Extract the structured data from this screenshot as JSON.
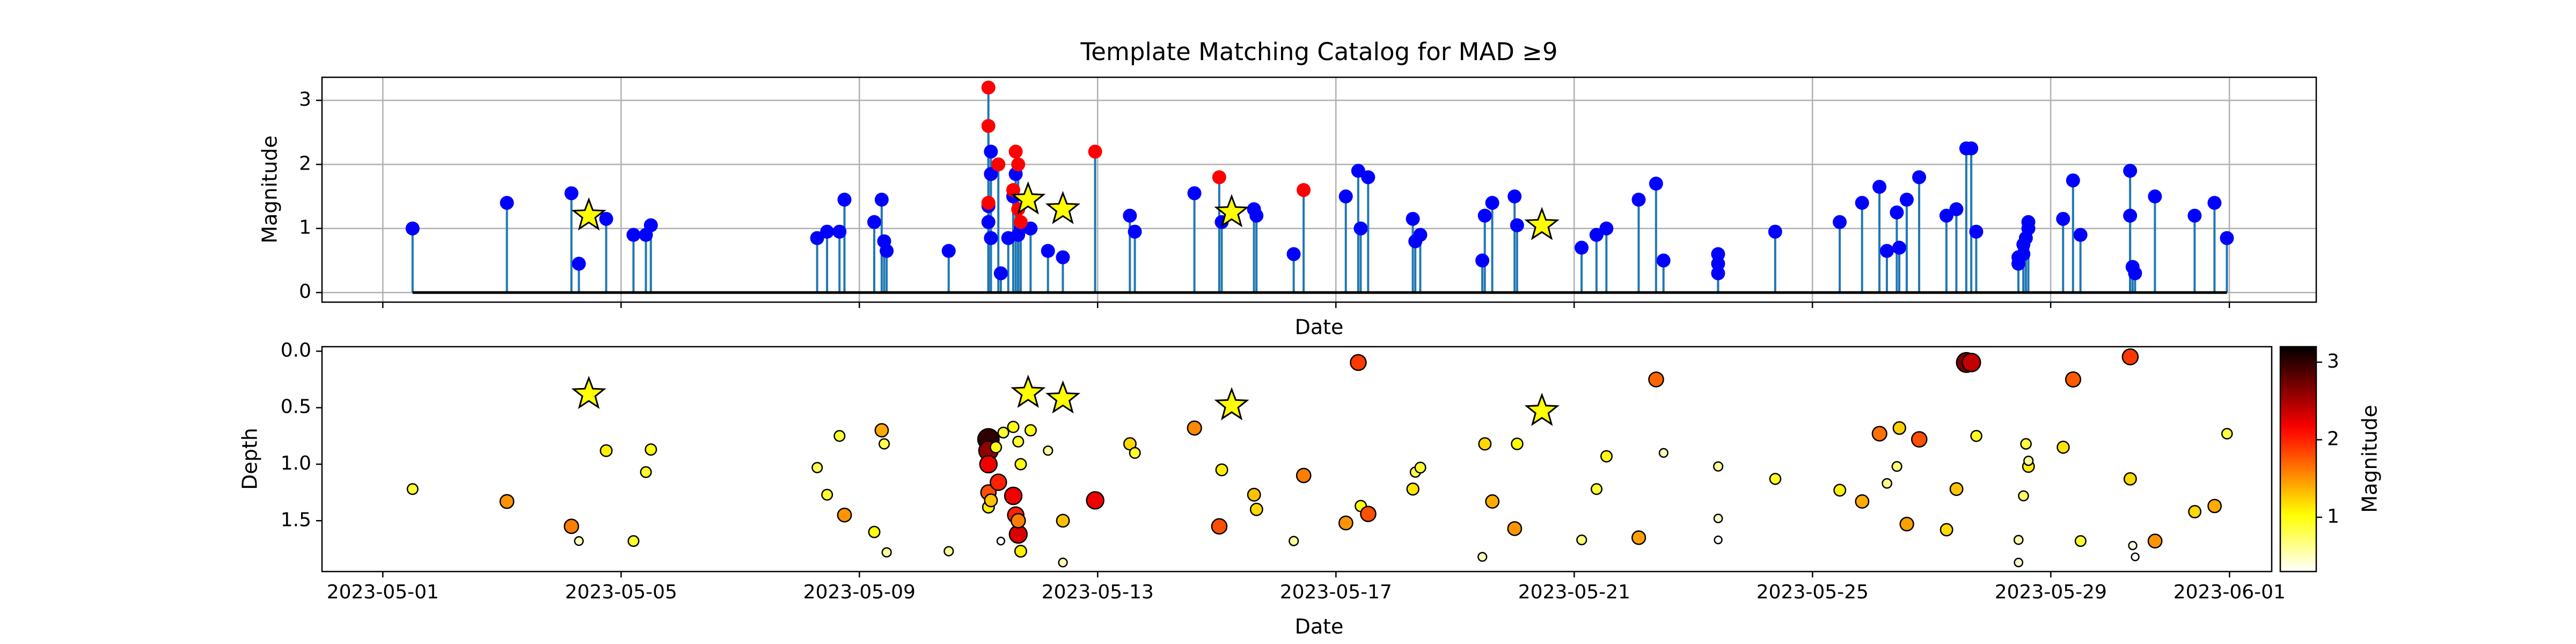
{
  "chart_data": [
    {
      "type": "stem",
      "title": "Template Matching Catalog for MAD ≥9",
      "xlabel": "Date",
      "ylabel": "Magnitude",
      "xlim": [
        "2023-04-29 23:30",
        "2023-06-02 11:00"
      ],
      "xticks": [
        "2023-05-01",
        "2023-05-05",
        "2023-05-09",
        "2023-05-13",
        "2023-05-17",
        "2023-05-21",
        "2023-05-25",
        "2023-05-29",
        "2023-06-01"
      ],
      "ylim": [
        -0.15,
        3.36
      ],
      "yticks": [
        0,
        1,
        2,
        3
      ],
      "grid": true,
      "stem_color": "#1f77b4",
      "baseline_color": "#000000",
      "series": [
        {
          "color": "#0000ff",
          "x": [
            "2023-05-01 12:00",
            "2023-05-03 02:00",
            "2023-05-04 04:00",
            "2023-05-04 07:00",
            "2023-05-04 18:00",
            "2023-05-05 05:00",
            "2023-05-05 10:00",
            "2023-05-05 12:00",
            "2023-05-08 07:00",
            "2023-05-08 11:00",
            "2023-05-08 16:00",
            "2023-05-08 18:00",
            "2023-05-09 06:00",
            "2023-05-09 09:00",
            "2023-05-09 10:00",
            "2023-05-09 11:00",
            "2023-05-10 12:00",
            "2023-05-11 04:00",
            "2023-05-11 04:00",
            "2023-05-11 05:00",
            "2023-05-11 05:00",
            "2023-05-11 05:00",
            "2023-05-11 09:00",
            "2023-05-11 12:00",
            "2023-05-11 14:00",
            "2023-05-11 15:00",
            "2023-05-11 16:00",
            "2023-05-11 17:00",
            "2023-05-11 21:00",
            "2023-05-12 04:00",
            "2023-05-12 10:00",
            "2023-05-13 13:00",
            "2023-05-13 15:00",
            "2023-05-14 15:00",
            "2023-05-15 02:00",
            "2023-05-15 15:00",
            "2023-05-15 16:00",
            "2023-05-16 07:00",
            "2023-05-17 04:00",
            "2023-05-17 09:00",
            "2023-05-17 10:00",
            "2023-05-17 13:00",
            "2023-05-18 07:00",
            "2023-05-18 08:00",
            "2023-05-18 10:00",
            "2023-05-19 11:00",
            "2023-05-19 12:00",
            "2023-05-19 15:00",
            "2023-05-20 00:00",
            "2023-05-20 01:00",
            "2023-05-21 03:00",
            "2023-05-21 09:00",
            "2023-05-21 13:00",
            "2023-05-22 02:00",
            "2023-05-22 09:00",
            "2023-05-22 12:00",
            "2023-05-23 10:00",
            "2023-05-23 10:00",
            "2023-05-23 10:00",
            "2023-05-24 09:00",
            "2023-05-25 11:00",
            "2023-05-25 20:00",
            "2023-05-26 03:00",
            "2023-05-26 06:00",
            "2023-05-26 10:00",
            "2023-05-26 11:00",
            "2023-05-26 14:00",
            "2023-05-26 19:00",
            "2023-05-27 06:00",
            "2023-05-27 10:00",
            "2023-05-27 14:00",
            "2023-05-27 16:00",
            "2023-05-27 18:00",
            "2023-05-28 11:00",
            "2023-05-28 11:00",
            "2023-05-28 13:00",
            "2023-05-28 13:00",
            "2023-05-28 14:00",
            "2023-05-28 15:00",
            "2023-05-28 15:00",
            "2023-05-29 05:00",
            "2023-05-29 09:00",
            "2023-05-29 12:00",
            "2023-05-30 08:00",
            "2023-05-30 08:00",
            "2023-05-30 09:00",
            "2023-05-30 10:00",
            "2023-05-30 18:00",
            "2023-05-31 10:00",
            "2023-05-31 18:00",
            "2023-05-31 23:00"
          ],
          "values": [
            1.0,
            1.4,
            1.55,
            0.45,
            1.15,
            0.9,
            0.9,
            1.05,
            0.85,
            0.95,
            0.95,
            1.45,
            1.1,
            1.45,
            0.8,
            0.65,
            0.65,
            1.1,
            1.35,
            1.85,
            2.2,
            0.85,
            0.3,
            0.85,
            1.5,
            1.85,
            0.9,
            1.0,
            1.0,
            0.65,
            0.55,
            1.2,
            0.95,
            1.55,
            1.1,
            1.3,
            1.2,
            0.6,
            1.5,
            1.9,
            1.0,
            1.8,
            1.15,
            0.8,
            0.9,
            0.5,
            1.2,
            1.4,
            1.5,
            1.05,
            0.7,
            0.9,
            1.0,
            1.45,
            1.7,
            0.5,
            0.6,
            0.45,
            0.3,
            0.95,
            1.1,
            1.4,
            1.65,
            0.65,
            1.25,
            0.7,
            1.45,
            1.8,
            1.2,
            1.3,
            2.25,
            2.25,
            0.95,
            0.55,
            0.45,
            0.75,
            0.6,
            0.85,
            1.1,
            1.0,
            1.15,
            1.75,
            0.9,
            1.9,
            1.2,
            0.4,
            0.3,
            1.5,
            1.2,
            1.4,
            0.85
          ]
        },
        {
          "color": "#ff0000",
          "x": [
            "2023-05-11 04:00",
            "2023-05-11 04:00",
            "2023-05-11 04:00",
            "2023-05-11 08:00",
            "2023-05-11 14:00",
            "2023-05-11 15:00",
            "2023-05-11 16:00",
            "2023-05-11 16:00",
            "2023-05-11 17:00",
            "2023-05-12 23:00",
            "2023-05-15 01:00",
            "2023-05-16 11:00"
          ],
          "values": [
            1.4,
            3.2,
            2.6,
            2.0,
            1.6,
            2.2,
            2.0,
            1.3,
            1.1,
            2.2,
            1.8,
            1.6
          ]
        }
      ],
      "templates": {
        "marker": "star",
        "color": "#ffff00",
        "x": [
          "2023-05-04 11:00",
          "2023-05-11 20:00",
          "2023-05-12 10:00",
          "2023-05-15 06:00",
          "2023-05-20 11:00"
        ],
        "values": [
          1.2,
          1.45,
          1.3,
          1.25,
          1.05
        ]
      }
    },
    {
      "type": "scatter",
      "xlabel": "Date",
      "ylabel": "Depth",
      "xlim": [
        "2023-04-29 23:30",
        "2023-06-01 17:00"
      ],
      "xticks": [
        "2023-05-01",
        "2023-05-05",
        "2023-05-09",
        "2023-05-13",
        "2023-05-17",
        "2023-05-21",
        "2023-05-25",
        "2023-05-29",
        "2023-06-01"
      ],
      "ylim": [
        1.95,
        -0.04
      ],
      "yticks": [
        {
          "value": 0,
          "label": "0.0"
        },
        {
          "value": 0.5,
          "label": "0.5"
        },
        {
          "value": 1,
          "label": "1.0"
        },
        {
          "value": 1.5,
          "label": "1.5"
        }
      ],
      "x": [
        "2023-05-01 12:00",
        "2023-05-03 02:00",
        "2023-05-04 04:00",
        "2023-05-04 07:00",
        "2023-05-04 18:00",
        "2023-05-05 05:00",
        "2023-05-05 10:00",
        "2023-05-05 12:00",
        "2023-05-08 07:00",
        "2023-05-08 11:00",
        "2023-05-08 16:00",
        "2023-05-08 18:00",
        "2023-05-09 06:00",
        "2023-05-09 09:00",
        "2023-05-09 10:00",
        "2023-05-09 11:00",
        "2023-05-10 12:00",
        "2023-05-11 04:00",
        "2023-05-11 04:00",
        "2023-05-11 04:00",
        "2023-05-11 04:00",
        "2023-05-11 04:00",
        "2023-05-11 05:00",
        "2023-05-11 07:00",
        "2023-05-11 08:00",
        "2023-05-11 09:00",
        "2023-05-11 10:00",
        "2023-05-11 14:00",
        "2023-05-11 14:00",
        "2023-05-11 15:00",
        "2023-05-11 16:00",
        "2023-05-11 16:00",
        "2023-05-11 16:00",
        "2023-05-11 17:00",
        "2023-05-11 17:00",
        "2023-05-11 21:00",
        "2023-05-12 04:00",
        "2023-05-12 10:00",
        "2023-05-12 10:00",
        "2023-05-12 23:00",
        "2023-05-13 13:00",
        "2023-05-13 15:00",
        "2023-05-14 15:00",
        "2023-05-15 01:00",
        "2023-05-15 02:00",
        "2023-05-15 15:00",
        "2023-05-15 16:00",
        "2023-05-16 07:00",
        "2023-05-16 11:00",
        "2023-05-17 04:00",
        "2023-05-17 09:00",
        "2023-05-17 10:00",
        "2023-05-17 13:00",
        "2023-05-18 07:00",
        "2023-05-18 08:00",
        "2023-05-18 10:00",
        "2023-05-19 11:00",
        "2023-05-19 12:00",
        "2023-05-19 15:00",
        "2023-05-20 00:00",
        "2023-05-20 01:00",
        "2023-05-21 03:00",
        "2023-05-21 09:00",
        "2023-05-21 13:00",
        "2023-05-22 02:00",
        "2023-05-22 09:00",
        "2023-05-22 12:00",
        "2023-05-23 10:00",
        "2023-05-23 10:00",
        "2023-05-23 10:00",
        "2023-05-24 09:00",
        "2023-05-25 11:00",
        "2023-05-25 20:00",
        "2023-05-26 03:00",
        "2023-05-26 06:00",
        "2023-05-26 10:00",
        "2023-05-26 11:00",
        "2023-05-26 14:00",
        "2023-05-26 19:00",
        "2023-05-27 06:00",
        "2023-05-27 10:00",
        "2023-05-27 14:00",
        "2023-05-27 16:00",
        "2023-05-27 18:00",
        "2023-05-28 11:00",
        "2023-05-28 11:00",
        "2023-05-28 13:00",
        "2023-05-28 14:00",
        "2023-05-28 15:00",
        "2023-05-28 15:00",
        "2023-05-29 05:00",
        "2023-05-29 09:00",
        "2023-05-29 12:00",
        "2023-05-30 08:00",
        "2023-05-30 08:00",
        "2023-05-30 09:00",
        "2023-05-30 10:00",
        "2023-05-30 18:00",
        "2023-05-31 10:00",
        "2023-05-31 18:00",
        "2023-05-31 23:00"
      ],
      "values": [
        1.22,
        1.33,
        1.55,
        1.68,
        0.88,
        1.68,
        1.07,
        0.87,
        1.03,
        1.27,
        0.75,
        1.45,
        1.6,
        0.7,
        0.82,
        1.78,
        1.77,
        0.78,
        0.88,
        1.0,
        1.25,
        1.38,
        1.32,
        0.85,
        1.16,
        1.68,
        0.72,
        0.67,
        1.28,
        1.45,
        1.62,
        1.5,
        0.8,
        1.0,
        1.77,
        0.7,
        0.88,
        1.5,
        1.87,
        1.32,
        0.82,
        0.9,
        0.68,
        1.55,
        1.05,
        1.27,
        1.4,
        1.68,
        1.1,
        1.52,
        0.1,
        1.37,
        1.44,
        1.22,
        1.07,
        1.03,
        1.82,
        0.82,
        1.33,
        1.57,
        0.82,
        1.67,
        1.22,
        0.93,
        1.65,
        0.25,
        0.9,
        1.02,
        1.48,
        1.67,
        1.13,
        1.23,
        1.33,
        0.73,
        1.17,
        1.02,
        0.68,
        1.53,
        0.78,
        1.58,
        1.22,
        0.1,
        0.1,
        0.75,
        1.67,
        1.87,
        1.28,
        0.82,
        1.02,
        0.97,
        0.85,
        0.25,
        1.68,
        0.05,
        1.13,
        1.72,
        1.82,
        1.68,
        1.42,
        1.37,
        0.73
      ],
      "magnitude": [
        0.9,
        1.5,
        1.6,
        0.5,
        1.1,
        0.9,
        0.9,
        1.0,
        0.8,
        0.9,
        0.9,
        1.5,
        1.0,
        1.4,
        0.8,
        0.6,
        0.6,
        3.0,
        2.6,
        2.2,
        1.8,
        1.1,
        1.3,
        1.0,
        2.0,
        0.3,
        0.9,
        1.0,
        2.2,
        2.0,
        2.3,
        1.6,
        0.9,
        1.0,
        1.1,
        1.0,
        0.6,
        1.3,
        0.5,
        2.2,
        1.2,
        0.9,
        1.55,
        1.8,
        1.1,
        1.3,
        1.2,
        0.6,
        1.6,
        1.5,
        1.9,
        1.0,
        1.8,
        1.15,
        0.8,
        0.9,
        0.5,
        1.2,
        1.4,
        1.5,
        1.05,
        0.7,
        0.9,
        1.0,
        1.45,
        1.7,
        0.5,
        0.6,
        0.45,
        0.3,
        0.95,
        1.1,
        1.4,
        1.65,
        0.65,
        0.7,
        1.25,
        1.45,
        1.8,
        1.2,
        1.3,
        2.7,
        2.4,
        0.95,
        0.55,
        0.45,
        0.75,
        0.85,
        1.1,
        0.6,
        1.15,
        1.75,
        0.9,
        1.9,
        1.2,
        0.4,
        0.3,
        1.5,
        1.2,
        1.4,
        0.85
      ],
      "colormap": "hot_r",
      "clim": [
        0.3,
        3.2
      ],
      "colorbar": {
        "label": "Magnitude",
        "ticks": [
          1,
          2,
          3
        ]
      },
      "templates": {
        "marker": "star",
        "color": "#ffff00",
        "x": [
          "2023-05-04 11:00",
          "2023-05-11 20:00",
          "2023-05-12 10:00",
          "2023-05-15 06:00",
          "2023-05-20 11:00"
        ],
        "values": [
          0.38,
          0.37,
          0.42,
          0.48,
          0.53
        ]
      }
    }
  ]
}
